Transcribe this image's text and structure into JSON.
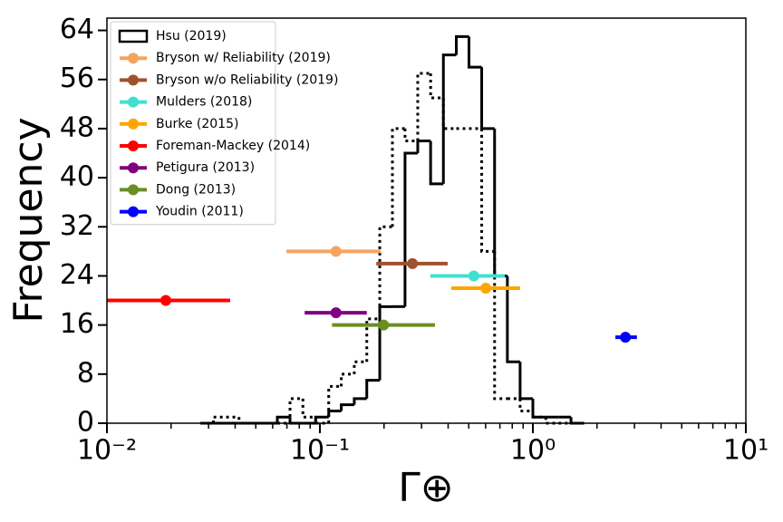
{
  "chart_data": {
    "type": "histogram",
    "xlabel": "Γ⊕",
    "ylabel": "Frequency",
    "xscale": "log",
    "xlim": [
      0.01,
      10
    ],
    "ylim": [
      0,
      66
    ],
    "xticks": [
      {
        "value": 0.01,
        "label": "10⁻²"
      },
      {
        "value": 0.1,
        "label": "10⁻¹"
      },
      {
        "value": 1,
        "label": "10⁰"
      },
      {
        "value": 10,
        "label": "10¹"
      }
    ],
    "yticks": [
      0,
      8,
      16,
      24,
      32,
      40,
      48,
      56,
      64
    ],
    "legend": "upper left",
    "bins": [
      0.0275,
      0.0316,
      0.0363,
      0.0417,
      0.0479,
      0.055,
      0.0631,
      0.0724,
      0.0832,
      0.0955,
      0.11,
      0.126,
      0.145,
      0.166,
      0.191,
      0.219,
      0.251,
      0.288,
      0.331,
      0.38,
      0.437,
      0.501,
      0.575,
      0.661,
      0.759,
      0.871,
      1.0,
      1.15,
      1.32,
      1.51,
      1.74
    ],
    "series": [
      {
        "name": "Hsu (2019)",
        "color": "#000000",
        "linestyle": "solid",
        "values": [
          0,
          0,
          0,
          0,
          0,
          0,
          1,
          0,
          0,
          1,
          2,
          3,
          4,
          7,
          19,
          19,
          44,
          46,
          39,
          60,
          63,
          58,
          48,
          24,
          10,
          4,
          1,
          1,
          1,
          0
        ]
      },
      {
        "color": "#000000",
        "linestyle": "dotted",
        "values": [
          0,
          1,
          1,
          0,
          0,
          0,
          0,
          4,
          1,
          0,
          6,
          8,
          10,
          17,
          32,
          48,
          46,
          57,
          53,
          48,
          48,
          48,
          28,
          4,
          4,
          2,
          1,
          0,
          0,
          0
        ]
      }
    ],
    "points": [
      {
        "name": "Bryson w/ Reliability (2019)",
        "color": "#f4a460",
        "x": 0.119,
        "xlow": 0.0697,
        "xhigh": 0.193,
        "y": 28
      },
      {
        "name": "Bryson w/o Reliability (2019)",
        "color": "#a0522d",
        "x": 0.272,
        "xlow": 0.184,
        "xhigh": 0.398,
        "y": 26
      },
      {
        "name": "Mulders (2018)",
        "color": "#40e0d0",
        "x": 0.528,
        "xlow": 0.33,
        "xhigh": 0.738,
        "y": 24
      },
      {
        "name": "Burke (2015)",
        "color": "#ffa500",
        "x": 0.601,
        "xlow": 0.414,
        "xhigh": 0.871,
        "y": 22
      },
      {
        "name": "Foreman-Mackey (2014)",
        "color": "#ff0000",
        "x": 0.0189,
        "xlow": 0.01,
        "xhigh": 0.0379,
        "y": 20
      },
      {
        "name": "Petigura (2013)",
        "color": "#800080",
        "x": 0.119,
        "xlow": 0.0848,
        "xhigh": 0.166,
        "y": 18
      },
      {
        "name": "Dong (2013)",
        "color": "#6b8e23",
        "x": 0.199,
        "xlow": 0.114,
        "xhigh": 0.347,
        "y": 16
      },
      {
        "name": "Youdin (2011)",
        "color": "#0000ff",
        "x": 2.72,
        "xlow": 2.44,
        "xhigh": 3.08,
        "y": 14
      }
    ]
  }
}
